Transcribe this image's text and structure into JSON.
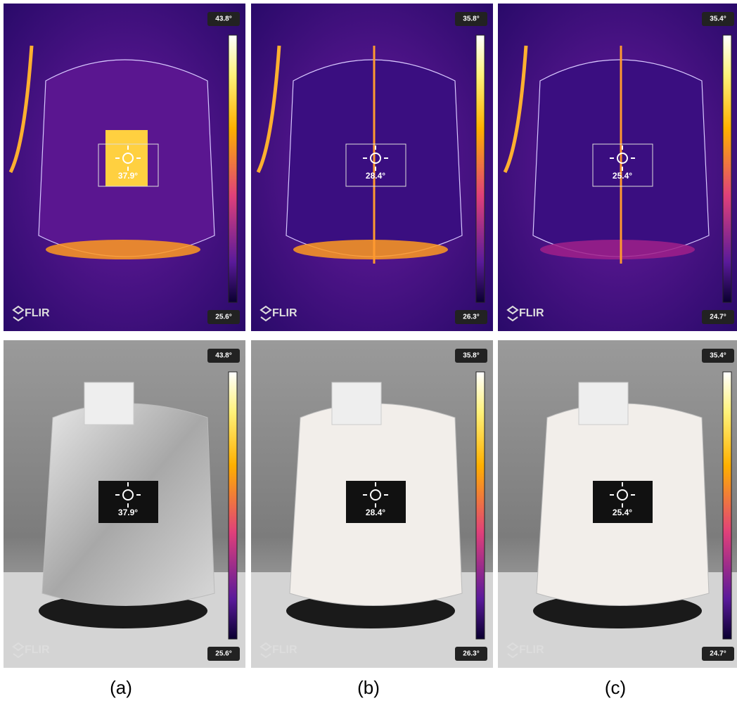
{
  "panels": [
    {
      "caption": "(a)",
      "thermal": {
        "max": "43.8°",
        "min": "25.6°",
        "spot": "37.9°",
        "logo": "FLIR"
      },
      "visual": {
        "max": "43.8°",
        "min": "25.6°",
        "spot": "37.9°",
        "logo": "FLIR"
      }
    },
    {
      "caption": "(b)",
      "thermal": {
        "max": "35.8°",
        "min": "26.3°",
        "spot": "28.4°",
        "logo": "FLIR"
      },
      "visual": {
        "max": "35.8°",
        "min": "26.3°",
        "spot": "28.4°",
        "logo": "FLIR"
      }
    },
    {
      "caption": "(c)",
      "thermal": {
        "max": "35.4°",
        "min": "24.7°",
        "spot": "25.4°",
        "logo": "FLIR"
      },
      "visual": {
        "max": "35.4°",
        "min": "24.7°",
        "spot": "25.4°",
        "logo": "FLIR"
      }
    }
  ]
}
